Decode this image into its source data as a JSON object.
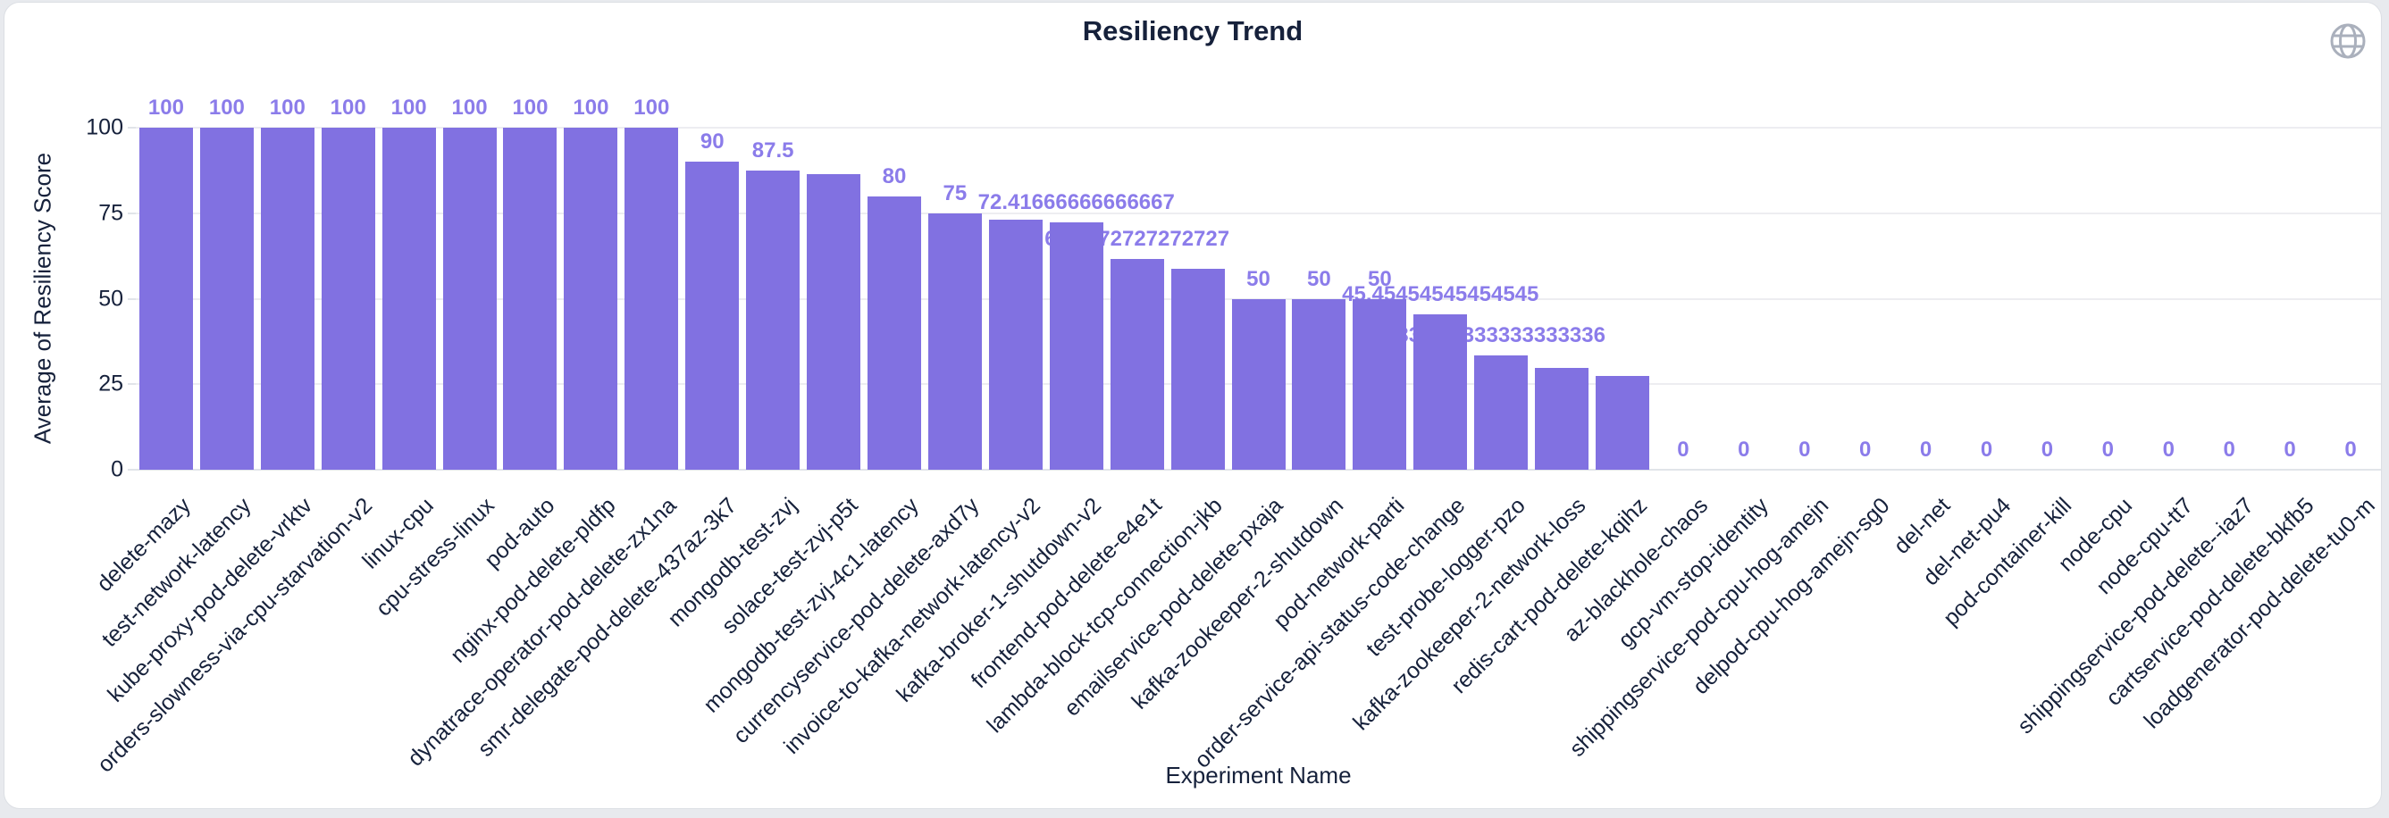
{
  "header": {
    "title": "Resiliency Trend",
    "globe_icon": "globe-icon"
  },
  "chart_data": {
    "type": "bar",
    "title": "Resiliency Trend",
    "xlabel": "Experiment Name",
    "ylabel": "Average of Resiliency Score",
    "ylim": [
      0,
      100
    ],
    "yticks": [
      0,
      25,
      50,
      75,
      100
    ],
    "grid": true,
    "legend": "none",
    "bar_color": "#8171e1",
    "value_label_color": "#8b7cea",
    "categories": [
      "delete-mazy",
      "test-network-latency",
      "kube-proxy-pod-delete-vrktv",
      "orders-slowness-via-cpu-starvation-v2",
      "linux-cpu",
      "cpu-stress-linux",
      "pod-auto",
      "nginx-pod-delete-pldfp",
      "dynatrace-operator-pod-delete-zx1na",
      "smr-delegate-pod-delete-437az-3k7",
      "mongodb-test-zvj",
      "solace-test-zvj-p5t",
      "mongodb-test-zvj-4c1-latency",
      "currencyservice-pod-delete-axd7y",
      "invoice-to-kafka-network-latency-v2",
      "kafka-broker-1-shutdown-v2",
      "frontend-pod-delete-e4e1t",
      "lambda-block-tcp-connection-jkb",
      "emailservice-pod-delete-pxaja",
      "kafka-zookeeper-2-shutdown",
      "pod-network-parti",
      "order-service-api-status-code-change",
      "test-probe-logger-pzo",
      "kafka-zookeeper-2-network-loss",
      "redis-cart-pod-delete-kqihz",
      "az-blackhole-chaos",
      "gcp-vm-stop-identity",
      "shippingservice-pod-cpu-hog-amejn",
      "delpod-cpu-hog-amejn-sg0",
      "del-net",
      "del-net-pu4",
      "pod-container-kill",
      "node-cpu",
      "node-cpu-tt7",
      "shippingservice-pod-delete--iaz7",
      "cartservice-pod-delete-bkfb5",
      "loadgenerator-pod-delete-tu0-m"
    ],
    "values": [
      100,
      100,
      100,
      100,
      100,
      100,
      100,
      100,
      100,
      90,
      87.5,
      86.3,
      80,
      75,
      73.2,
      72.41666666666667,
      61.7272727272727,
      58.8,
      50,
      50,
      50,
      45.45454545454545,
      33.333333333333336,
      29.8,
      27.3,
      0,
      0,
      0,
      0,
      0,
      0,
      0,
      0,
      0,
      0,
      0,
      0
    ],
    "bar_labels": [
      "100",
      "100",
      "100",
      "100",
      "100",
      "100",
      "100",
      "100",
      "100",
      "90",
      "87.5",
      null,
      "80",
      "75",
      null,
      "72.41666666666667",
      "61.7272727272727",
      null,
      "50",
      "50",
      "50",
      "45.45454545454545",
      "33.333333333333336",
      null,
      null,
      "0",
      "0",
      "0",
      "0",
      "0",
      "0",
      "0",
      "0",
      "0",
      "0",
      "0",
      "0"
    ]
  }
}
